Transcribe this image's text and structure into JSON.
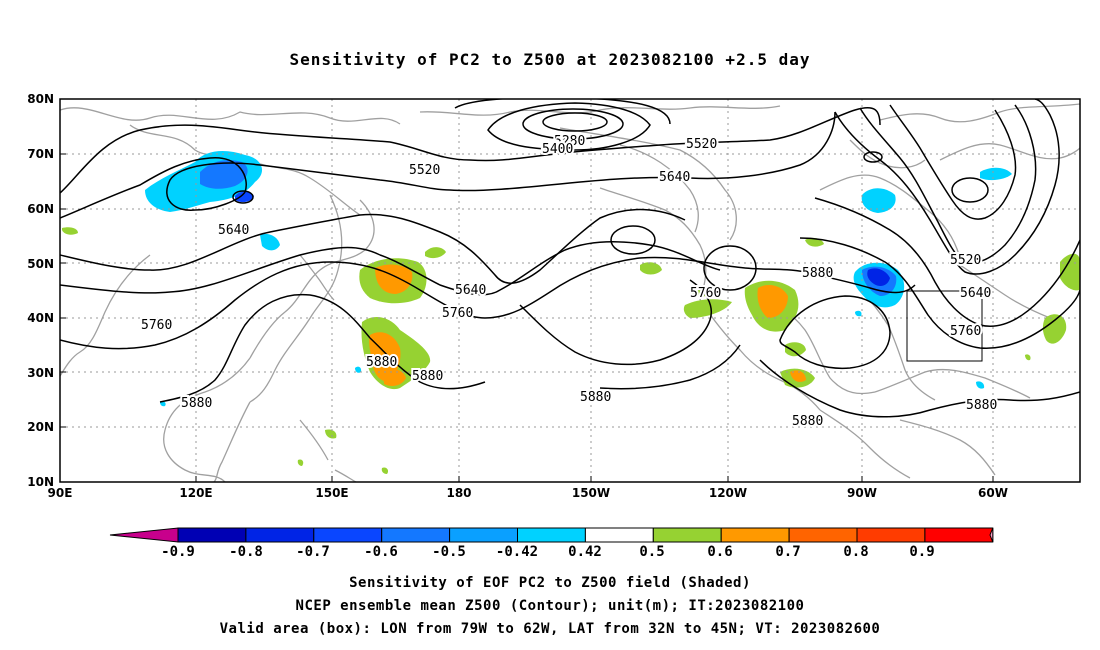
{
  "title": "Sensitivity of PC2 to Z500 at 2023082100 +2.5 day",
  "map": {
    "lat_labels": [
      "80N",
      "70N",
      "60N",
      "50N",
      "40N",
      "30N",
      "20N",
      "10N"
    ],
    "lon_labels": [
      "90E",
      "120E",
      "150E",
      "180",
      "150W",
      "120W",
      "90W",
      "60W"
    ],
    "grid": "dotted",
    "contour_color": "#000000",
    "coastline_color": "#a0a0a0",
    "contour_labels": [
      "5280",
      "5400",
      "5520",
      "5520",
      "5520",
      "5640",
      "5640",
      "5640",
      "5640",
      "5760",
      "5760",
      "5760",
      "5760",
      "5880",
      "5880",
      "5880",
      "5880",
      "5880",
      "5880",
      "5880"
    ],
    "valid_box": {
      "lon": [
        -79,
        -62
      ],
      "lat": [
        32,
        45
      ]
    }
  },
  "colorbar": {
    "labels": [
      "-0.9",
      "-0.8",
      "-0.7",
      "-0.6",
      "-0.5",
      "-0.42",
      "0.42",
      "0.5",
      "0.6",
      "0.7",
      "0.8",
      "0.9"
    ],
    "colors": [
      "#c8008c",
      "#0000b4",
      "#0024e6",
      "#0a46ff",
      "#1478ff",
      "#0aa0ff",
      "#00d2ff",
      "#ffffff",
      "#96d232",
      "#ff9900",
      "#ff6400",
      "#ff3c00",
      "#ff0000",
      "#ffa0c8"
    ]
  },
  "captions": [
    "Sensitivity of EOF PC2 to Z500 field (Shaded)",
    "NCEP ensemble mean Z500 (Contour); unit(m); IT:2023082100",
    "Valid area (box): LON from 79W to 62W, LAT from 32N to 45N; VT: 2023082600"
  ]
}
